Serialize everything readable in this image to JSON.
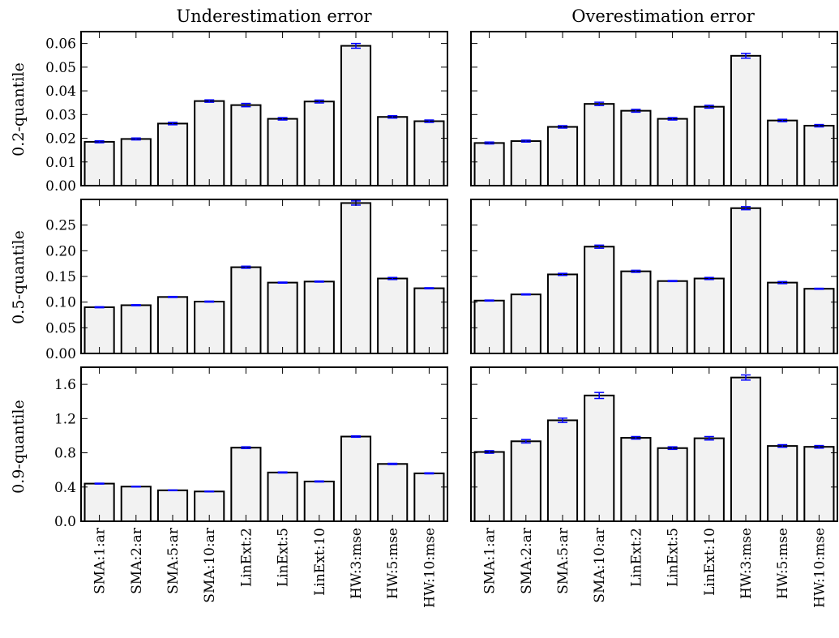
{
  "chart_data": {
    "type": "bar",
    "column_titles": [
      "Underestimation error",
      "Overestimation error"
    ],
    "row_labels": [
      "0.2-quantile",
      "0.5-quantile",
      "0.9-quantile"
    ],
    "categories": [
      "SMA:1:ar",
      "SMA:2:ar",
      "SMA:5:ar",
      "SMA:10:ar",
      "LinExt:2",
      "LinExt:5",
      "LinExt:10",
      "HW:3:mse",
      "HW:5:mse",
      "HW:10:mse"
    ],
    "colors": {
      "bar_fill": "#f2f2f2",
      "bar_edge": "#000000",
      "errorbar": "#0000ff"
    },
    "grid": false,
    "rows": [
      {
        "ylim": [
          0,
          0.065
        ],
        "yticks": [
          0.0,
          0.01,
          0.02,
          0.03,
          0.04,
          0.05,
          0.06
        ],
        "ytick_labels": [
          "0.00",
          "0.01",
          "0.02",
          "0.03",
          "0.04",
          "0.05",
          "0.06"
        ],
        "panels": [
          {
            "values": [
              0.0185,
              0.0197,
              0.0262,
              0.0357,
              0.034,
              0.0282,
              0.0355,
              0.059,
              0.029,
              0.0272
            ],
            "errors": [
              0.0004,
              0.0004,
              0.0005,
              0.0005,
              0.0007,
              0.0005,
              0.0006,
              0.001,
              0.0005,
              0.0005
            ]
          },
          {
            "values": [
              0.018,
              0.0188,
              0.0248,
              0.0345,
              0.0316,
              0.0282,
              0.0333,
              0.0548,
              0.0275,
              0.0253
            ],
            "errors": [
              0.0004,
              0.0004,
              0.0005,
              0.0007,
              0.0006,
              0.0005,
              0.0006,
              0.001,
              0.0005,
              0.0005
            ]
          }
        ]
      },
      {
        "ylim": [
          0,
          0.3
        ],
        "yticks": [
          0.0,
          0.05,
          0.1,
          0.15,
          0.2,
          0.25
        ],
        "ytick_labels": [
          "0.00",
          "0.05",
          "0.10",
          "0.15",
          "0.20",
          "0.25"
        ],
        "panels": [
          {
            "values": [
              0.09,
              0.094,
              0.11,
              0.101,
              0.168,
              0.138,
              0.14,
              0.293,
              0.146,
              0.127
            ],
            "errors": [
              0.001,
              0.001,
              0.001,
              0.001,
              0.002,
              0.001,
              0.001,
              0.004,
              0.002,
              0.001
            ]
          },
          {
            "values": [
              0.103,
              0.115,
              0.154,
              0.208,
              0.16,
              0.141,
              0.146,
              0.283,
              0.138,
              0.126
            ],
            "errors": [
              0.001,
              0.001,
              0.002,
              0.003,
              0.002,
              0.001,
              0.002,
              0.003,
              0.002,
              0.001
            ]
          }
        ]
      },
      {
        "ylim": [
          0,
          1.8
        ],
        "yticks": [
          0.0,
          0.4,
          0.8,
          1.2,
          1.6
        ],
        "ytick_labels": [
          "0.0",
          "0.4",
          "0.8",
          "1.2",
          "1.6"
        ],
        "panels": [
          {
            "values": [
              0.44,
              0.405,
              0.362,
              0.348,
              0.86,
              0.57,
              0.465,
              0.99,
              0.67,
              0.56
            ],
            "errors": [
              0.005,
              0.004,
              0.004,
              0.004,
              0.01,
              0.006,
              0.006,
              0.008,
              0.007,
              0.006
            ]
          },
          {
            "values": [
              0.81,
              0.935,
              1.18,
              1.47,
              0.975,
              0.855,
              0.97,
              1.68,
              0.88,
              0.87
            ],
            "errors": [
              0.015,
              0.02,
              0.025,
              0.035,
              0.015,
              0.015,
              0.02,
              0.03,
              0.015,
              0.015
            ]
          }
        ]
      }
    ]
  }
}
